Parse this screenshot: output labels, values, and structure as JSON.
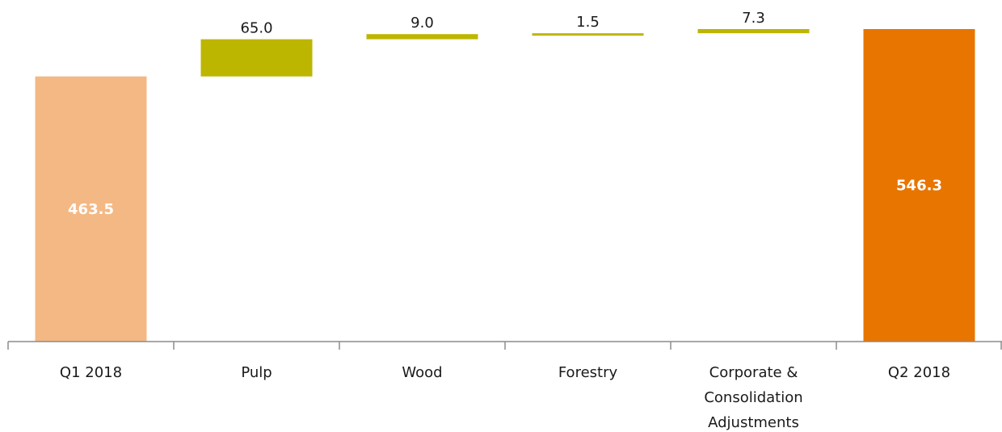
{
  "chart_data": {
    "type": "bar",
    "subtype": "waterfall",
    "categories": [
      [
        "Q1 2018"
      ],
      [
        "Pulp"
      ],
      [
        "Wood"
      ],
      [
        "Forestry"
      ],
      [
        "Corporate &",
        "Consolidation",
        "Adjustments"
      ],
      [
        "Q2 2018"
      ]
    ],
    "values": [
      463.5,
      65.0,
      9.0,
      1.5,
      7.3,
      546.3
    ],
    "value_labels": [
      "463.5",
      "65.0",
      "9.0",
      "1.5",
      "7.3",
      "546.3"
    ],
    "kinds": [
      "total",
      "delta",
      "delta",
      "delta",
      "delta",
      "total"
    ],
    "colors": [
      "#f4b884",
      "#bdb600",
      "#bdb600",
      "#bdb600",
      "#bdb600",
      "#e87500"
    ],
    "label_position": [
      "inside",
      "above",
      "above",
      "above",
      "above",
      "inside"
    ],
    "ylim": [
      0,
      580
    ],
    "grid": false,
    "legend": "none",
    "title": "",
    "xlabel": "",
    "ylabel": ""
  }
}
